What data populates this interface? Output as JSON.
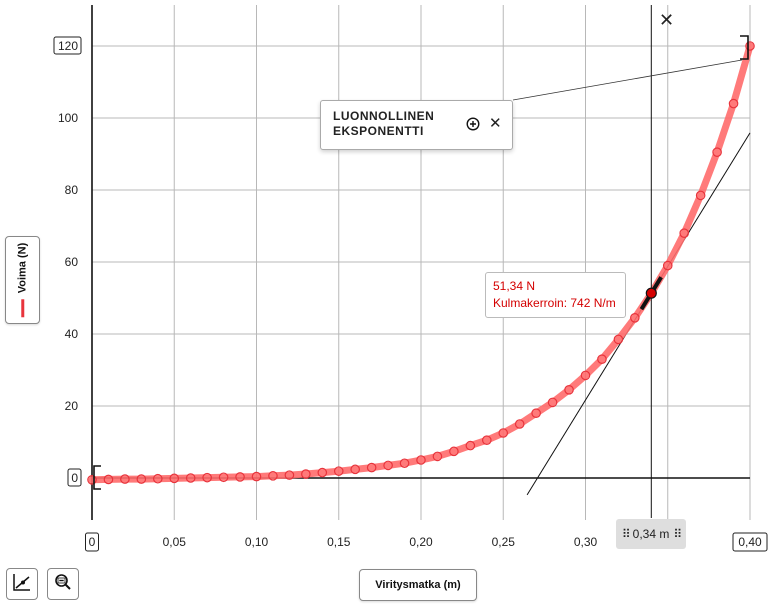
{
  "chart_data": {
    "type": "scatter",
    "xlabel": "Viritysmatka (m)",
    "ylabel": "Voima (N)",
    "xlim": [
      0,
      0.4
    ],
    "ylim": [
      -12,
      131
    ],
    "x_ticks": [
      0,
      0.05,
      0.1,
      0.15,
      0.2,
      0.25,
      0.3,
      0.35,
      0.4
    ],
    "x_tick_labels": [
      "0",
      "0,05",
      "0,10",
      "0,15",
      "0,20",
      "0,25",
      "0,30",
      "",
      "0,40"
    ],
    "y_ticks": [
      0,
      20,
      40,
      60,
      80,
      100,
      120
    ],
    "y_tick_labels": [
      "0",
      "20",
      "40",
      "60",
      "80",
      "100",
      "120"
    ],
    "grid": true,
    "series": [
      {
        "name": "Voima (N)",
        "color": "#e8343c",
        "marker": "open-circle",
        "x": [
          0.0,
          0.01,
          0.02,
          0.03,
          0.04,
          0.05,
          0.06,
          0.07,
          0.08,
          0.09,
          0.1,
          0.11,
          0.12,
          0.13,
          0.14,
          0.15,
          0.16,
          0.17,
          0.18,
          0.19,
          0.2,
          0.21,
          0.22,
          0.23,
          0.24,
          0.25,
          0.26,
          0.27,
          0.28,
          0.29,
          0.3,
          0.31,
          0.32,
          0.33,
          0.34,
          0.35,
          0.36,
          0.37,
          0.38,
          0.39,
          0.4
        ],
        "y": [
          -0.5,
          -0.4,
          -0.3,
          -0.3,
          -0.2,
          -0.1,
          0.0,
          0.1,
          0.2,
          0.3,
          0.4,
          0.6,
          0.8,
          1.1,
          1.5,
          1.9,
          2.4,
          2.9,
          3.5,
          4.1,
          5.0,
          6.0,
          7.4,
          9.0,
          10.5,
          12.5,
          15.0,
          18.0,
          21.0,
          24.5,
          28.5,
          33.0,
          38.5,
          44.5,
          51.3,
          59.0,
          68.0,
          78.5,
          90.5,
          104.0,
          120.0
        ]
      }
    ],
    "fit": {
      "name": "LUONNOLLINEN EKSPONENTTI",
      "color": "#ff6b6b"
    },
    "cursor": {
      "x": 0.34,
      "x_label": "0,34 m",
      "y": 51.34,
      "value_label": "51,34 N",
      "slope_label": "Kulmakerroin: 742 N/m",
      "slope": 742
    }
  },
  "ui": {
    "fit_zoom_icon": "zoom-in-icon",
    "fit_close_icon": "close-icon",
    "cursor_close_icon": "close-icon",
    "drag_handle_icon": "drag-handle-icon",
    "tool_tangent_icon": "tangent-tool-icon",
    "tool_zoom_icon": "zoom-out-icon"
  }
}
